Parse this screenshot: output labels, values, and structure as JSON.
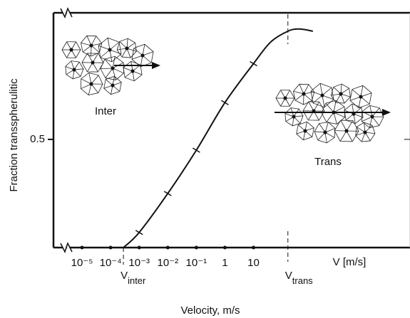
{
  "chart_data": {
    "type": "line",
    "x_label": "Velocity, m/s",
    "y_label": "Fraction transspherulitic",
    "x_axis_unit_label": "V [m/s]",
    "log_x": true,
    "x": [
      0.00028,
      0.001,
      0.01,
      0.1,
      1,
      10,
      40,
      160,
      400,
      1200
    ],
    "series": [
      {
        "color": "#111111",
        "values": [
          0,
          0.07,
          0.25,
          0.45,
          0.67,
          0.85,
          0.95,
          1.0,
          1.01,
          1.0
        ]
      }
    ],
    "xlim": [
      1e-06,
      3000000
    ],
    "xticks": [
      {
        "value": 1e-05,
        "label": "10⁻⁵"
      },
      {
        "value": 0.0001,
        "label": "10⁻⁴"
      },
      {
        "value": 0.001,
        "label": "10⁻³"
      },
      {
        "value": 0.01,
        "label": "10⁻²"
      },
      {
        "value": 0.1,
        "label": "10⁻¹"
      },
      1,
      10
    ],
    "ylim": [
      0,
      1.085
    ],
    "yticks": [
      0.5
    ],
    "markers": [
      {
        "text": "V",
        "subscript": "inter",
        "x": 0.00028
      },
      {
        "text": "V",
        "subscript": "trans",
        "x": 160
      }
    ],
    "regions": [
      {
        "label": "Inter"
      },
      {
        "label": "Trans"
      }
    ]
  }
}
